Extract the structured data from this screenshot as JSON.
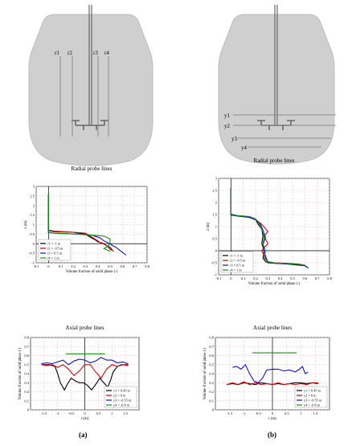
{
  "panels": [
    {
      "id": "a",
      "label": "(a)",
      "vessel": {
        "probe_labels": [
          "r1",
          "r2",
          "r3",
          "r4"
        ]
      },
      "charts": [
        {
          "kind": "radial",
          "title": "Radial probe lines",
          "type": "line",
          "xlabel": "Volume fraction of solid phase (-)",
          "ylabel": "z (m)",
          "xlim": [
            -0.1,
            0.8
          ],
          "ylim": [
            -1.0,
            3.0
          ],
          "xticks": [
            -0.1,
            0,
            0.1,
            0.2,
            0.3,
            0.4,
            0.5,
            0.6,
            0.7,
            0.8
          ],
          "xtick_labels": [
            "-0.1",
            "0",
            "0.1",
            "0.2",
            "0.3",
            "0.4",
            "0.5",
            "0.6",
            "0.7",
            "0.8"
          ],
          "yticks": [
            -1,
            -0.5,
            0,
            0.5,
            1,
            1.5,
            2,
            2.5,
            3
          ],
          "ytick_labels": [
            "-1",
            "-0.5",
            "0",
            "0.5",
            "1",
            "1.5",
            "2",
            "2.5",
            "3"
          ],
          "grid": true,
          "legend": "bottom-left",
          "series": [
            {
              "name": "r1 = -1 m",
              "color": "#000000",
              "x": [
                0,
                0,
                0.05,
                0.2,
                0.3,
                0.35,
                0.38,
                0.4,
                0.43,
                0.45,
                0.47,
                0.5,
                0.52
              ],
              "y": [
                2.6,
                0.7,
                0.65,
                0.6,
                0.5,
                0.3,
                0.2,
                0.1,
                0.05,
                0.0,
                -0.1,
                -0.2,
                -0.35
              ]
            },
            {
              "name": "r2 = -0.5 m",
              "color": "#e00000",
              "x": [
                0,
                0,
                0.05,
                0.2,
                0.3,
                0.35,
                0.4,
                0.42,
                0.46,
                0.48,
                0.5,
                0.52,
                0.53
              ],
              "y": [
                2.6,
                0.68,
                0.62,
                0.6,
                0.55,
                0.35,
                0.15,
                0.05,
                -0.05,
                -0.15,
                -0.3,
                -0.35,
                -0.4
              ]
            },
            {
              "name": "r3 = 0.5 m",
              "color": "#1010d0",
              "x": [
                0,
                0,
                0.05,
                0.25,
                0.35,
                0.42,
                0.45,
                0.5,
                0.52,
                0.55,
                0.57,
                0.6,
                0.63
              ],
              "y": [
                2.6,
                0.58,
                0.55,
                0.5,
                0.45,
                0.3,
                0.15,
                0.0,
                -0.1,
                -0.2,
                -0.3,
                -0.45,
                -0.6
              ]
            },
            {
              "name": "r4 = 1 m",
              "color": "#109010",
              "x": [
                0,
                0,
                0.05,
                0.25,
                0.35,
                0.45,
                0.5,
                0.5,
                0.5,
                0.48,
                0.45,
                0.5
              ],
              "y": [
                2.6,
                0.6,
                0.55,
                0.5,
                0.45,
                0.4,
                0.25,
                0.1,
                0.0,
                -0.15,
                -0.25,
                -0.4
              ]
            }
          ]
        },
        {
          "kind": "axial",
          "title": "Axial probe lines",
          "type": "line",
          "xlabel": "r (m)",
          "ylabel": "Volume fraction of solid phase (-)",
          "xlim": [
            -2.0,
            2.0
          ],
          "ylim": [
            0,
            0.8
          ],
          "xticks": [
            -1.5,
            -1,
            -0.5,
            0,
            0.5,
            1,
            1.5
          ],
          "xtick_labels": [
            "-1.5",
            "-1",
            "-0.5",
            "0",
            "0.5",
            "1",
            "1.5"
          ],
          "yticks": [
            0,
            0.1,
            0.2,
            0.3,
            0.4,
            0.5,
            0.6,
            0.7,
            0.8
          ],
          "ytick_labels": [
            "0",
            "0.1",
            "0.2",
            "0.3",
            "0.4",
            "0.5",
            "0.6",
            "0.7",
            "0.8"
          ],
          "grid": true,
          "legend": "bottom-right",
          "series": [
            {
              "name": "y1 = 0.45 m",
              "color": "#000000",
              "x": [
                -1.6,
                -1.3,
                -1.1,
                -1.0,
                -0.9,
                -0.75,
                -0.65,
                -0.5,
                -0.35,
                -0.2,
                -0.05,
                0.1,
                0.25,
                0.4,
                0.55,
                0.7,
                0.85,
                0.95,
                1.05,
                1.2,
                1.35,
                1.5,
                1.6
              ],
              "y": [
                0.5,
                0.5,
                0.48,
                0.4,
                0.3,
                0.22,
                0.28,
                0.35,
                0.32,
                0.3,
                0.3,
                0.27,
                0.22,
                0.28,
                0.35,
                0.3,
                0.25,
                0.33,
                0.42,
                0.48,
                0.5,
                0.5,
                0.5
              ]
            },
            {
              "name": "y2 = 0 m",
              "color": "#e00000",
              "x": [
                -1.6,
                -1.4,
                -1.2,
                -1.0,
                -0.8,
                -0.6,
                -0.4,
                -0.2,
                0,
                0.2,
                0.4,
                0.6,
                0.8,
                1.0,
                1.2,
                1.4,
                1.6
              ],
              "y": [
                0.5,
                0.49,
                0.5,
                0.47,
                0.5,
                0.45,
                0.38,
                0.43,
                0.5,
                0.5,
                0.42,
                0.35,
                0.45,
                0.5,
                0.48,
                0.5,
                0.49
              ]
            },
            {
              "name": "y3 = -0.55 m",
              "color": "#1010d0",
              "x": [
                -1.6,
                -1.4,
                -1.2,
                -1.0,
                -0.8,
                -0.6,
                -0.4,
                -0.2,
                0,
                0.2,
                0.4,
                0.6,
                0.8,
                1.0,
                1.2,
                1.4,
                1.6
              ],
              "y": [
                0.51,
                0.52,
                0.51,
                0.53,
                0.55,
                0.5,
                0.54,
                0.56,
                0.55,
                0.52,
                0.54,
                0.58,
                0.55,
                0.55,
                0.52,
                0.53,
                0.51
              ]
            },
            {
              "name": "y4 = -0.8 m",
              "color": "#109010",
              "x": [
                -0.7,
                0.75
              ],
              "y": [
                0.62,
                0.62
              ]
            }
          ]
        }
      ]
    },
    {
      "id": "b",
      "label": "(b)",
      "vessel": {
        "probe_labels": [
          "y1",
          "y2",
          "y3",
          "y4"
        ]
      },
      "charts": [
        {
          "kind": "radial",
          "title": "Radial probe lines",
          "type": "line",
          "xlabel": "Volume fraction of solid phase (-)",
          "ylabel": "z (m)",
          "xlim": [
            -0.1,
            0.8
          ],
          "ylim": [
            -1.0,
            3.0
          ],
          "xticks": [
            -0.1,
            0,
            0.1,
            0.2,
            0.3,
            0.4,
            0.5,
            0.6,
            0.7,
            0.8
          ],
          "xtick_labels": [
            "-0.1",
            "0",
            "0.1",
            "0.2",
            "0.3",
            "0.4",
            "0.5",
            "0.6",
            "0.7",
            "0.8"
          ],
          "yticks": [
            -1,
            -0.5,
            0,
            0.5,
            1,
            1.5,
            2,
            2.5,
            3
          ],
          "ytick_labels": [
            "-1",
            "-0.5",
            "0",
            "0.5",
            "1",
            "1.5",
            "2",
            "2.5",
            "3"
          ],
          "grid": true,
          "legend": "bottom-left",
          "series": [
            {
              "name": "r1 = -1 m",
              "color": "#000000",
              "x": [
                0,
                0,
                0.05,
                0.15,
                0.2,
                0.22,
                0.25,
                0.26,
                0.25,
                0.27,
                0.26,
                0.28,
                0.3,
                0.35,
                0.45,
                0.55,
                0.6,
                0.62
              ],
              "y": [
                2.6,
                1.5,
                1.45,
                1.4,
                1.3,
                1.1,
                0.9,
                0.6,
                0.3,
                0.0,
                -0.3,
                -0.45,
                -0.5,
                -0.52,
                -0.55,
                -0.6,
                -0.62,
                -0.7
              ]
            },
            {
              "name": "r2 = -0.5 m",
              "color": "#e00000",
              "x": [
                0,
                0,
                0.05,
                0.15,
                0.2,
                0.25,
                0.3,
                0.27,
                0.3,
                0.25,
                0.28,
                0.3,
                0.35,
                0.45,
                0.55,
                0.6,
                0.62
              ],
              "y": [
                2.6,
                1.5,
                1.45,
                1.4,
                1.3,
                1.1,
                0.8,
                0.6,
                0.3,
                0.0,
                -0.3,
                -0.45,
                -0.5,
                -0.52,
                -0.55,
                -0.6,
                -0.7
              ]
            },
            {
              "name": "r3 = 0.5 m",
              "color": "#1010d0",
              "x": [
                0,
                0,
                0.05,
                0.15,
                0.2,
                0.24,
                0.26,
                0.28,
                0.26,
                0.27,
                0.29,
                0.3,
                0.35,
                0.45,
                0.55,
                0.6,
                0.63
              ],
              "y": [
                2.6,
                1.48,
                1.44,
                1.38,
                1.28,
                1.1,
                0.85,
                0.55,
                0.25,
                -0.05,
                -0.35,
                -0.47,
                -0.52,
                -0.54,
                -0.58,
                -0.62,
                -0.72
              ]
            },
            {
              "name": "r4 = 1 m",
              "color": "#109010",
              "x": [
                0,
                0,
                0.05,
                0.15,
                0.2,
                0.23,
                0.25,
                0.27,
                0.26,
                0.28,
                0.27,
                0.3,
                0.35,
                0.45,
                0.55,
                0.6,
                0.62
              ],
              "y": [
                2.6,
                1.52,
                1.46,
                1.42,
                1.32,
                1.12,
                0.88,
                0.58,
                0.28,
                0.02,
                -0.32,
                -0.46,
                -0.5,
                -0.53,
                -0.56,
                -0.6,
                -0.68
              ]
            }
          ]
        },
        {
          "kind": "axial",
          "title": "Axial probe lines",
          "type": "line",
          "xlabel": "r (m)",
          "ylabel": "Volume fraction of solid phase (-)",
          "xlim": [
            -2.0,
            2.0
          ],
          "ylim": [
            0,
            0.8
          ],
          "xticks": [
            -1.5,
            -1,
            -0.5,
            0,
            0.5,
            1,
            1.5
          ],
          "xtick_labels": [
            "-1.5",
            "-1",
            "-0.5",
            "0",
            "0.5",
            "1",
            "1.5"
          ],
          "yticks": [
            0,
            0.1,
            0.2,
            0.3,
            0.4,
            0.5,
            0.6,
            0.7,
            0.8
          ],
          "ytick_labels": [
            "0",
            "0.1",
            "0.2",
            "0.3",
            "0.4",
            "0.5",
            "0.6",
            "0.7",
            "0.8"
          ],
          "grid": true,
          "legend": "bottom-right",
          "series": [
            {
              "name": "y1 = 0.45 m",
              "color": "#000000",
              "x": [
                -1.6,
                -1.4,
                -1.2,
                -1.0,
                -0.8,
                -0.6,
                -0.4,
                -0.2,
                0,
                0.2,
                0.4,
                0.6,
                0.8,
                1.0,
                1.2,
                1.4,
                1.6
              ],
              "y": [
                0.28,
                0.29,
                0.28,
                0.3,
                0.29,
                0.28,
                0.3,
                0.29,
                0.28,
                0.29,
                0.28,
                0.29,
                0.3,
                0.3,
                0.29,
                0.3,
                0.29
              ]
            },
            {
              "name": "y2 = 0 m",
              "color": "#e00000",
              "x": [
                -1.6,
                -1.4,
                -1.2,
                -1.0,
                -0.8,
                -0.6,
                -0.4,
                -0.2,
                0,
                0.2,
                0.4,
                0.6,
                0.8,
                1.0,
                1.2,
                1.4,
                1.6
              ],
              "y": [
                0.28,
                0.3,
                0.28,
                0.31,
                0.28,
                0.3,
                0.28,
                0.29,
                0.28,
                0.3,
                0.28,
                0.29,
                0.28,
                0.29,
                0.28,
                0.3,
                0.3
              ]
            },
            {
              "name": "y3 = -0.55 m",
              "color": "#1010d0",
              "x": [
                -1.4,
                -1.25,
                -1.1,
                -0.95,
                -0.8,
                -0.65,
                -0.5,
                -0.35,
                -0.2,
                0,
                0.2,
                0.4,
                0.6,
                0.8,
                0.95,
                1.05,
                1.15,
                1.25
              ],
              "y": [
                0.47,
                0.48,
                0.45,
                0.5,
                0.4,
                0.32,
                0.3,
                0.35,
                0.44,
                0.45,
                0.45,
                0.43,
                0.44,
                0.42,
                0.45,
                0.48,
                0.4,
                0.42
              ]
            },
            {
              "name": "y4 = -0.8 m",
              "color": "#109010",
              "x": [
                -0.7,
                0.85
              ],
              "y": [
                0.63,
                0.63
              ]
            }
          ]
        }
      ]
    }
  ]
}
